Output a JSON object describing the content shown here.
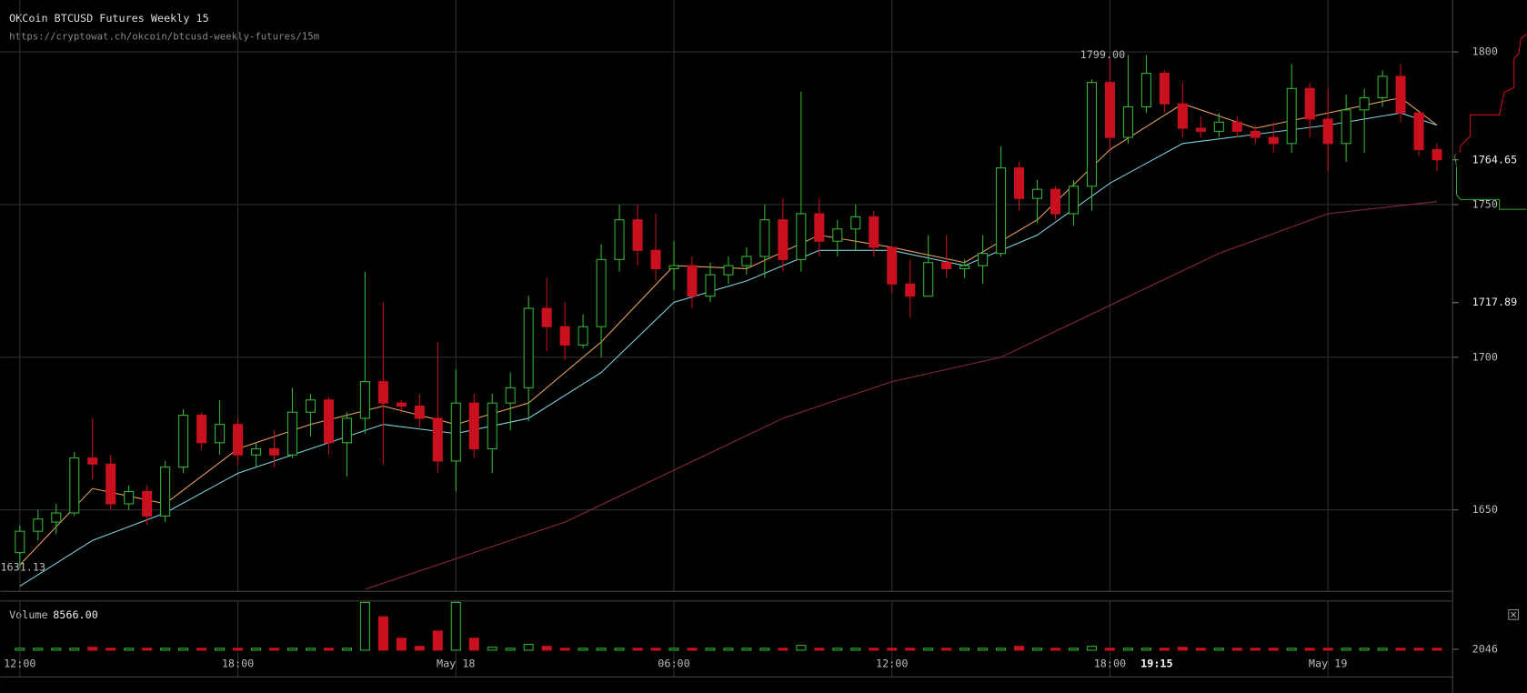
{
  "chart_data": {
    "type": "candlestick",
    "title": "OKCoin BTCUSD Futures Weekly 15",
    "subtitle": "https://cryptowat.ch/okcoin/btcusd-weekly-futures/15m",
    "up_color": "#33b533",
    "down_color": "#c8101e",
    "grid": true,
    "xlim": [
      -1.07,
      78.86
    ],
    "xticks": [
      {
        "value": 0,
        "label": "12:00"
      },
      {
        "value": 12,
        "label": "18:00"
      },
      {
        "value": 24,
        "label": "May 18"
      },
      {
        "value": 36,
        "label": "06:00"
      },
      {
        "value": 48,
        "label": "12:00"
      },
      {
        "value": 60,
        "label": "18:00"
      },
      {
        "value": 72,
        "label": "May 19"
      }
    ],
    "cursor_label": "19:15",
    "ylim": [
      1623.5,
      1817
    ],
    "yticks": [
      1650,
      1700,
      1750,
      1800
    ],
    "price_tags": [
      1764.65,
      1717.89
    ],
    "high_label": {
      "value": 1799,
      "label": "1799.00"
    },
    "low_label": 1631.13,
    "open": [
      1636,
      1643,
      1646,
      1649,
      1667,
      1665,
      1652,
      1656,
      1648,
      1664,
      1681,
      1672,
      1678,
      1668,
      1670,
      1668,
      1682,
      1686,
      1672,
      1680,
      1692,
      1685,
      1684,
      1680,
      1666,
      1685,
      1670,
      1685,
      1690,
      1716,
      1710,
      1704,
      1710,
      1732,
      1745,
      1735,
      1729,
      1730,
      1720,
      1727,
      1730,
      1733,
      1745,
      1732,
      1747,
      1738,
      1742,
      1746,
      1736,
      1724,
      1720,
      1731,
      1729,
      1730,
      1734,
      1762,
      1752,
      1755,
      1747,
      1756,
      1790,
      1772,
      1782,
      1793,
      1783,
      1775,
      1774,
      1777,
      1774,
      1772,
      1770,
      1788,
      1778,
      1770,
      1781,
      1785,
      1792,
      1780,
      1768
    ],
    "high": [
      1645,
      1650,
      1652,
      1669,
      1680,
      1668,
      1658,
      1658,
      1666,
      1683,
      1682,
      1686,
      1680,
      1672,
      1676,
      1690,
      1688,
      1687,
      1682,
      1728,
      1718,
      1686,
      1688,
      1705,
      1696,
      1688,
      1688,
      1695,
      1720,
      1726,
      1718,
      1714,
      1737,
      1750,
      1750,
      1747,
      1738,
      1733,
      1731,
      1733,
      1736,
      1750,
      1752,
      1787,
      1752,
      1745,
      1750,
      1748,
      1736,
      1732,
      1740,
      1740,
      1732,
      1740,
      1769,
      1764,
      1758,
      1756,
      1758,
      1791,
      1798,
      1799,
      1799,
      1794,
      1790,
      1779,
      1780,
      1779,
      1776,
      1777,
      1796,
      1790,
      1788,
      1786,
      1788,
      1794,
      1796,
      1780,
      1770
    ],
    "low": [
      1631,
      1640,
      1642,
      1648,
      1660,
      1650,
      1650,
      1645,
      1646,
      1662,
      1670,
      1668,
      1665,
      1664,
      1664,
      1667,
      1674,
      1668,
      1661,
      1675,
      1665,
      1682,
      1677,
      1662,
      1656,
      1667,
      1662,
      1676,
      1679,
      1702,
      1699,
      1703,
      1700,
      1728,
      1730,
      1725,
      1722,
      1716,
      1718,
      1724,
      1727,
      1726,
      1728,
      1728,
      1733,
      1733,
      1735,
      1733,
      1721,
      1713,
      1720,
      1726,
      1726,
      1724,
      1733,
      1748,
      1744,
      1745,
      1743,
      1748,
      1768,
      1770,
      1780,
      1780,
      1772,
      1772,
      1772,
      1772,
      1770,
      1767,
      1767,
      1772,
      1761,
      1764,
      1767,
      1782,
      1777,
      1766,
      1761
    ],
    "close": [
      1643,
      1647,
      1649,
      1667,
      1665,
      1652,
      1656,
      1648,
      1664,
      1681,
      1672,
      1678,
      1668,
      1670,
      1668,
      1682,
      1686,
      1672,
      1680,
      1692,
      1685,
      1684,
      1680,
      1666,
      1685,
      1670,
      1685,
      1690,
      1716,
      1710,
      1704,
      1710,
      1732,
      1745,
      1735,
      1729,
      1730,
      1720,
      1727,
      1730,
      1733,
      1745,
      1732,
      1747,
      1738,
      1742,
      1746,
      1736,
      1724,
      1720,
      1731,
      1729,
      1730,
      1734,
      1762,
      1752,
      1755,
      1747,
      1756,
      1790,
      1772,
      1782,
      1793,
      1783,
      1775,
      1774,
      1777,
      1774,
      1772,
      1770,
      1788,
      1778,
      1770,
      1781,
      1785,
      1792,
      1780,
      1768,
      1764.65
    ],
    "overlays": [
      {
        "color": "#e8a060",
        "x": [
          0,
          4,
          8,
          12,
          16,
          20,
          24,
          28,
          32,
          36,
          40,
          44,
          48,
          52,
          56,
          60,
          64,
          68,
          72,
          76,
          78
        ],
        "values": [
          1632,
          1657,
          1652,
          1670,
          1678,
          1684,
          1678,
          1685,
          1705,
          1730,
          1729,
          1740,
          1736,
          1731,
          1745,
          1768,
          1783,
          1775,
          1780,
          1785,
          1776
        ]
      },
      {
        "color": "#7fd0e0",
        "x": [
          0,
          4,
          8,
          12,
          16,
          20,
          24,
          28,
          32,
          36,
          40,
          44,
          48,
          52,
          56,
          60,
          64,
          68,
          72,
          76,
          78
        ],
        "values": [
          1625,
          1640,
          1649,
          1662,
          1670,
          1678,
          1675,
          1680,
          1695,
          1718,
          1725,
          1735,
          1735,
          1730,
          1740,
          1757,
          1770,
          1773,
          1776,
          1780,
          1776
        ]
      },
      {
        "color": "#8a2a3a",
        "x": [
          19,
          24,
          30,
          36,
          42,
          48,
          54,
          60,
          66,
          72,
          78
        ],
        "values": [
          1624,
          1634,
          1646,
          1663,
          1680,
          1692,
          1700,
          1717,
          1734,
          1747,
          1751
        ]
      }
    ],
    "volume": {
      "label": "Volume",
      "readout": {
        "value": 8566,
        "label": "8566.00"
      },
      "ylim": [
        0,
        104000
      ],
      "yticks": [
        2046
      ],
      "values": [
        4000,
        4000,
        4000,
        4000,
        6000,
        4000,
        4000,
        4000,
        4000,
        4000,
        4000,
        4000,
        4000,
        4000,
        4000,
        4000,
        4000,
        4000,
        4000,
        100000,
        70000,
        25000,
        8000,
        40000,
        100000,
        25000,
        6000,
        4000,
        12000,
        8000,
        4000,
        4000,
        4000,
        4000,
        4000,
        4000,
        4000,
        4000,
        4000,
        4000,
        4000,
        4000,
        4000,
        10000,
        4000,
        4000,
        4000,
        4000,
        4000,
        4000,
        4000,
        4000,
        4000,
        4000,
        4000,
        8000,
        4000,
        4000,
        4000,
        8000,
        4000,
        4000,
        4000,
        4000,
        6000,
        4000,
        4000,
        4000,
        4000,
        4000,
        4000,
        4000,
        4000,
        4000,
        4000,
        4000,
        4000,
        4000,
        4000
      ]
    }
  }
}
